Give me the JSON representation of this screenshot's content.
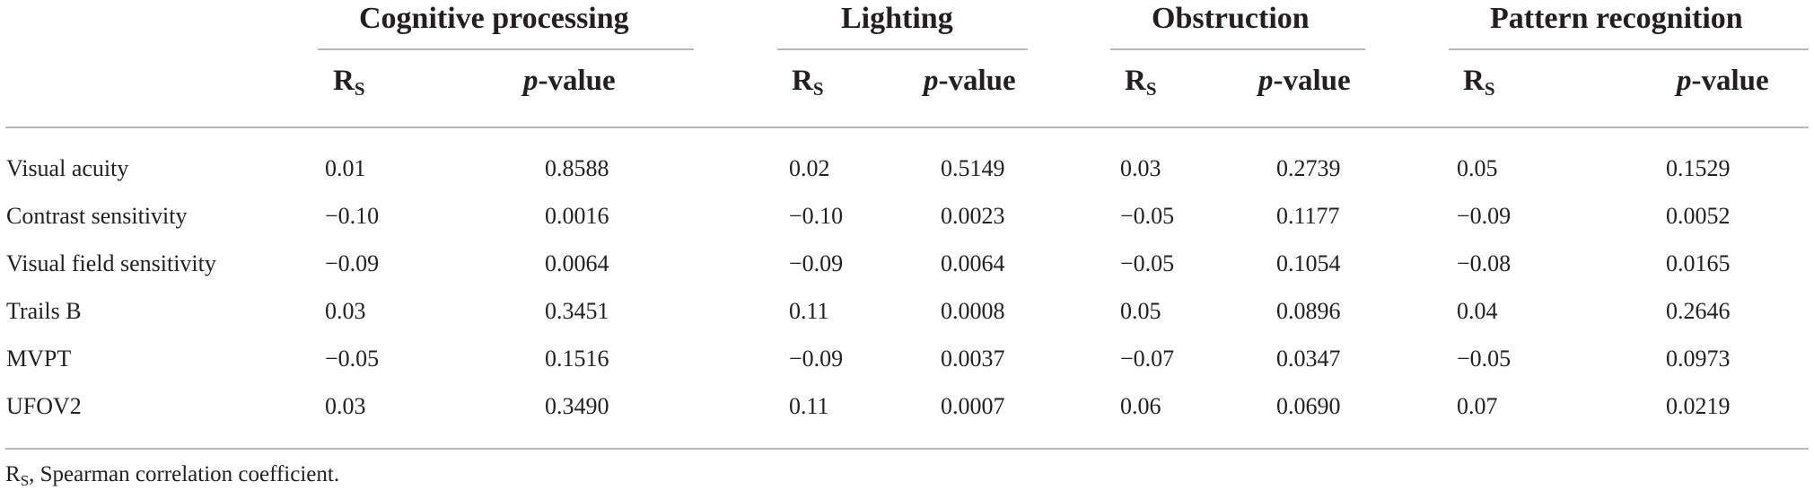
{
  "table": {
    "groups": [
      {
        "title": "Cognitive processing",
        "rs_label": "R",
        "rs_sub": "S",
        "p_italic": "p",
        "p_rest": "-value"
      },
      {
        "title": "Lighting",
        "rs_label": "R",
        "rs_sub": "S",
        "p_italic": "p",
        "p_rest": "-value"
      },
      {
        "title": "Obstruction",
        "rs_label": "R",
        "rs_sub": "S",
        "p_italic": "p",
        "p_rest": "-value"
      },
      {
        "title": "Pattern recognition",
        "rs_label": "R",
        "rs_sub": "S",
        "p_italic": "p",
        "p_rest": "-value"
      }
    ],
    "rows": [
      {
        "label": "Visual acuity",
        "cells": [
          "0.01",
          "0.8588",
          "0.02",
          "0.5149",
          "0.03",
          "0.2739",
          "0.05",
          "0.1529"
        ]
      },
      {
        "label": "Contrast sensitivity",
        "cells": [
          "−0.10",
          "0.0016",
          "−0.10",
          "0.0023",
          "−0.05",
          "0.1177",
          "−0.09",
          "0.0052"
        ]
      },
      {
        "label": "Visual field sensitivity",
        "cells": [
          "−0.09",
          "0.0064",
          "−0.09",
          "0.0064",
          "−0.05",
          "0.1054",
          "−0.08",
          "0.0165"
        ]
      },
      {
        "label": "Trails B",
        "cells": [
          "0.03",
          "0.3451",
          "0.11",
          "0.0008",
          "0.05",
          "0.0896",
          "0.04",
          "0.2646"
        ]
      },
      {
        "label": "MVPT",
        "cells": [
          "−0.05",
          "0.1516",
          "−0.09",
          "0.0037",
          "−0.07",
          "0.0347",
          "−0.05",
          "0.0973"
        ]
      },
      {
        "label": "UFOV2",
        "cells": [
          "0.03",
          "0.3490",
          "0.11",
          "0.0007",
          "0.06",
          "0.0690",
          "0.07",
          "0.0219"
        ]
      }
    ]
  },
  "footnote": {
    "symbol": "R",
    "symbol_sub": "S",
    "text": ", Spearman correlation coefficient."
  }
}
